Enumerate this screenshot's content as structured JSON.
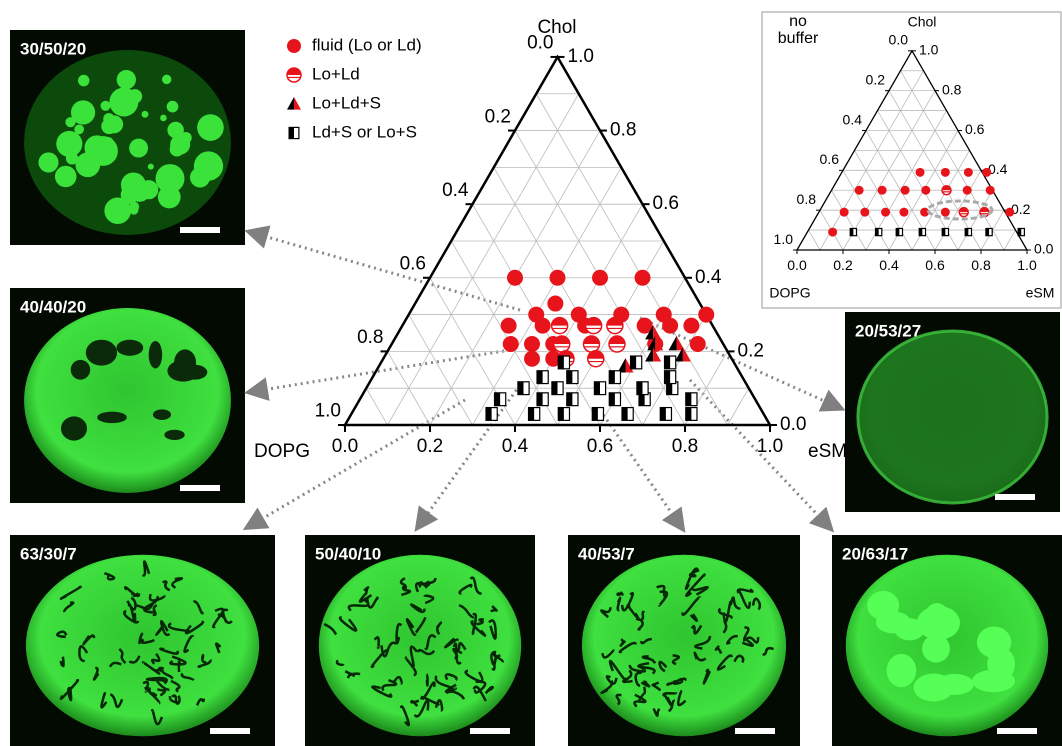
{
  "chart_data": [
    {
      "type": "ternary",
      "axes": [
        {
          "label": "eSM",
          "ticks": [
            {
              "value": 0,
              "label": "0.0"
            },
            0.2,
            0.4,
            0.6,
            0.8,
            {
              "value": 1,
              "label": "1.0"
            }
          ]
        },
        {
          "label": "Chol",
          "ticks": [
            {
              "value": 0,
              "label": "0.0"
            },
            0.2,
            0.4,
            0.6,
            0.8,
            {
              "value": 1,
              "label": "1.0"
            }
          ]
        },
        {
          "label": "DOPG",
          "ticks": [
            {
              "value": 0,
              "label": "0.0"
            },
            0.2,
            0.4,
            0.6,
            0.8,
            {
              "value": 1,
              "label": "1.0"
            }
          ]
        }
      ],
      "grid": [
        0.1,
        0.2,
        0.3,
        0.4,
        0.5,
        0.6,
        0.7,
        0.8,
        0.9
      ],
      "series": [
        {
          "name": "fluid (Lo or Ld)",
          "marker": "circle",
          "color": "#e8141c",
          "eSM": [
            0.2,
            0.3,
            0.4,
            0.5,
            0.33,
            0.3,
            0.4,
            0.5,
            0.6,
            0.7,
            0.25,
            0.33,
            0.43,
            0.57,
            0.63,
            0.68,
            0.28,
            0.33,
            0.38,
            0.62,
            0.72,
            0.35,
            0.4
          ],
          "Chol": [
            0.4,
            0.4,
            0.4,
            0.4,
            0.33,
            0.3,
            0.3,
            0.3,
            0.3,
            0.3,
            0.27,
            0.27,
            0.27,
            0.27,
            0.27,
            0.27,
            0.22,
            0.22,
            0.22,
            0.22,
            0.22,
            0.18,
            0.18
          ]
        },
        {
          "name": "Lo+Ld",
          "marker": "half",
          "color": "#e8141c",
          "eSM": [
            0.37,
            0.45,
            0.5,
            0.4,
            0.47,
            0.53,
            0.43,
            0.5
          ],
          "Chol": [
            0.27,
            0.27,
            0.27,
            0.22,
            0.22,
            0.22,
            0.18,
            0.18
          ]
        },
        {
          "name": "Lo+Ld+S",
          "marker": "triangle",
          "color": "#e8141c",
          "eSM": [
            0.6,
            0.62,
            0.67,
            0.63,
            0.7,
            0.58
          ],
          "Chol": [
            0.25,
            0.22,
            0.22,
            0.19,
            0.19,
            0.16
          ]
        },
        {
          "name": "Ld+S or Lo+S",
          "marker": "square",
          "color": "#000000",
          "eSM": [
            0.33,
            0.43,
            0.5,
            0.58,
            0.65,
            0.74,
            0.8,
            0.33,
            0.43,
            0.5,
            0.6,
            0.67,
            0.78,
            0.37,
            0.45,
            0.55,
            0.65,
            0.72,
            0.4,
            0.47,
            0.57,
            0.7,
            0.43,
            0.6,
            0.68
          ],
          "Chol": [
            0.03,
            0.03,
            0.03,
            0.03,
            0.03,
            0.03,
            0.03,
            0.07,
            0.07,
            0.07,
            0.07,
            0.07,
            0.07,
            0.1,
            0.1,
            0.1,
            0.1,
            0.1,
            0.13,
            0.13,
            0.13,
            0.13,
            0.17,
            0.17,
            0.17
          ]
        }
      ]
    },
    {
      "type": "ternary",
      "note": [
        "no",
        "buffer"
      ],
      "axes": [
        {
          "label": "eSM",
          "ticks": [
            {
              "value": 0,
              "label": "0.0"
            },
            0.2,
            0.4,
            0.6,
            0.8,
            {
              "value": 1,
              "label": "1.0"
            }
          ]
        },
        {
          "label": "Chol",
          "ticks": [
            {
              "value": 0,
              "label": "0.0"
            },
            0.2,
            0.4,
            0.6,
            0.8,
            {
              "value": 1,
              "label": "1.0"
            }
          ]
        },
        {
          "label": "DOPG",
          "ticks": [
            {
              "value": 0,
              "label": "0.0"
            },
            0.2,
            0.4,
            0.6,
            0.8,
            {
              "value": 1,
              "label": "1.0"
            }
          ]
        }
      ],
      "grid": [
        0.1,
        0.2,
        0.3,
        0.4,
        0.5,
        0.6,
        0.7,
        0.8,
        0.9
      ],
      "series": [
        {
          "marker": "circle",
          "color": "#e8141c",
          "eSM": [
            0.34,
            0.45,
            0.55,
            0.63,
            0.12,
            0.22,
            0.32,
            0.41,
            0.59,
            0.69,
            0.11,
            0.2,
            0.29,
            0.37,
            0.46,
            0.55,
            0.83,
            0.11
          ],
          "Chol": [
            0.39,
            0.39,
            0.39,
            0.39,
            0.3,
            0.3,
            0.3,
            0.3,
            0.3,
            0.3,
            0.19,
            0.19,
            0.19,
            0.19,
            0.19,
            0.19,
            0.19,
            0.09
          ]
        },
        {
          "marker": "half",
          "color": "#e8141c",
          "eSM": [
            0.5,
            0.63,
            0.72
          ],
          "Chol": [
            0.3,
            0.19,
            0.19
          ]
        },
        {
          "marker": "square",
          "color": "#000000",
          "eSM": [
            0.2,
            0.31,
            0.4,
            0.5,
            0.6,
            0.7,
            0.79,
            0.93
          ],
          "Chol": [
            0.09,
            0.09,
            0.09,
            0.09,
            0.09,
            0.09,
            0.09,
            0.09
          ]
        }
      ]
    }
  ],
  "panels": [
    {
      "label": "30/50/20"
    },
    {
      "label": "40/40/20"
    },
    {
      "label": "20/53/27"
    },
    {
      "label": "63/30/7"
    },
    {
      "label": "50/40/10"
    },
    {
      "label": "40/53/7"
    },
    {
      "label": "20/63/17"
    }
  ]
}
